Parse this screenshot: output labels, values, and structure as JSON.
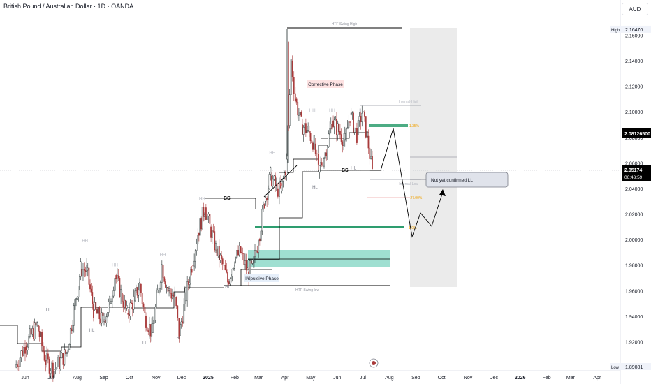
{
  "header": {
    "title": "British Pound / Australian Dollar · 1D · OANDA"
  },
  "price_scale": {
    "currency": "AUD"
  },
  "chart_data": {
    "type": "candlestick",
    "title": "British Pound / Australian Dollar · 1D · OANDA",
    "ylim": [
      1.89,
      2.175
    ],
    "y_ticks": [
      "2.16000",
      "2.14000",
      "2.12000",
      "2.10000",
      "2.08000",
      "2.06000",
      "2.04000",
      "2.02000",
      "2.00000",
      "1.98000",
      "1.96000",
      "1.94000",
      "1.92000",
      "1.90000"
    ],
    "x_ticks": [
      "Jun",
      "Jul",
      "Aug",
      "Sep",
      "Oct",
      "Nov",
      "Dec",
      "2025",
      "Feb",
      "Mar",
      "Apr",
      "May",
      "Jun",
      "Jul",
      "Aug",
      "Sep",
      "Oct",
      "Nov",
      "Dec",
      "2026",
      "Feb",
      "Mar",
      "Apr"
    ],
    "price_labels": {
      "high": {
        "label": "High",
        "value": "2.16470"
      },
      "level": {
        "value": "2.08126500"
      },
      "last": {
        "value": "2.05174",
        "countdown": "06:43:59"
      },
      "low": {
        "label": "Low",
        "value": "1.89081"
      }
    },
    "close_path": [
      [
        "2024-05-20",
        1.9
      ],
      [
        "2024-06-01",
        1.917
      ],
      [
        "2024-06-15",
        1.933
      ],
      [
        "2024-06-25",
        1.905
      ],
      [
        "2024-07-05",
        1.898
      ],
      [
        "2024-07-20",
        1.912
      ],
      [
        "2024-07-28",
        1.945
      ],
      [
        "2024-08-05",
        1.977
      ],
      [
        "2024-08-12",
        1.976
      ],
      [
        "2024-08-20",
        1.945
      ],
      [
        "2024-08-31",
        1.936
      ],
      [
        "2024-09-08",
        1.95
      ],
      [
        "2024-09-14",
        1.972
      ],
      [
        "2024-09-21",
        1.958
      ],
      [
        "2024-09-28",
        1.942
      ],
      [
        "2024-10-06",
        1.952
      ],
      [
        "2024-10-13",
        1.965
      ],
      [
        "2024-10-19",
        1.94
      ],
      [
        "2024-10-27",
        1.927
      ],
      [
        "2024-11-03",
        1.958
      ],
      [
        "2024-11-08",
        1.98
      ],
      [
        "2024-11-15",
        1.96
      ],
      [
        "2024-11-23",
        1.955
      ],
      [
        "2024-11-28",
        1.925
      ],
      [
        "2024-12-05",
        1.952
      ],
      [
        "2024-12-13",
        1.98
      ],
      [
        "2024-12-20",
        2.005
      ],
      [
        "2024-12-28",
        2.025
      ],
      [
        "2025-01-03",
        2.01
      ],
      [
        "2025-01-10",
        1.993
      ],
      [
        "2025-01-18",
        1.98
      ],
      [
        "2025-01-24",
        1.967
      ],
      [
        "2025-02-01",
        1.985
      ],
      [
        "2025-02-08",
        1.99
      ],
      [
        "2025-02-16",
        1.975
      ],
      [
        "2025-02-22",
        1.978
      ],
      [
        "2025-03-01",
        2.0
      ],
      [
        "2025-03-08",
        2.03
      ],
      [
        "2025-03-15",
        2.05
      ],
      [
        "2025-03-22",
        2.04
      ],
      [
        "2025-03-27",
        2.038
      ],
      [
        "2025-04-03",
        2.06
      ],
      [
        "2025-04-08",
        2.14
      ],
      [
        "2025-04-13",
        2.11
      ],
      [
        "2025-04-20",
        2.09
      ],
      [
        "2025-04-28",
        2.085
      ],
      [
        "2025-05-05",
        2.075
      ],
      [
        "2025-05-10",
        2.053
      ],
      [
        "2025-05-18",
        2.068
      ],
      [
        "2025-05-26",
        2.093
      ],
      [
        "2025-06-03",
        2.085
      ],
      [
        "2025-06-10",
        2.077
      ],
      [
        "2025-06-16",
        2.098
      ],
      [
        "2025-06-24",
        2.082
      ],
      [
        "2025-06-30",
        2.1
      ],
      [
        "2025-07-06",
        2.081
      ],
      [
        "2025-07-12",
        2.052
      ]
    ],
    "annotations": {
      "corrective_phase": "Corrective Phase",
      "impulsive_phase": "Impulsive Phase",
      "htf_swing_high": "HTF-Swing High",
      "htf_swing_low": "HTF-Swing low",
      "internal_high": "Internal-High",
      "internal_low": "Internal-Low",
      "callout": "Not yet confirmed LL",
      "fib_pos": "1.35%",
      "fib_neg": "-27.00%",
      "fib_mid": "-1.0%",
      "bos_labels": [
        "BS",
        "BS"
      ],
      "structure_labels": [
        {
          "text": "HH",
          "x": "2024-08-10",
          "y": 1.998
        },
        {
          "text": "HL",
          "x": "2024-08-18",
          "y": 1.928
        },
        {
          "text": "LL",
          "x": "2024-06-28",
          "y": 1.944
        },
        {
          "text": "HH",
          "x": "2024-09-14",
          "y": 1.979
        },
        {
          "text": "LL",
          "x": "2024-10-19",
          "y": 1.918
        },
        {
          "text": "HH",
          "x": "2024-11-09",
          "y": 1.987
        },
        {
          "text": "HL",
          "x": "2024-11-28",
          "y": 1.922
        },
        {
          "text": "HH",
          "x": "2024-12-25",
          "y": 2.031
        },
        {
          "text": "HL",
          "x": "2025-01-24",
          "y": 1.962
        },
        {
          "text": "HH",
          "x": "2025-03-17",
          "y": 2.067
        },
        {
          "text": "HL",
          "x": "2025-02-19",
          "y": 1.969
        },
        {
          "text": "HH",
          "x": "2025-05-03",
          "y": 2.1
        },
        {
          "text": "HH",
          "x": "2025-05-26",
          "y": 2.1
        },
        {
          "text": "HH",
          "x": "2025-06-28",
          "y": 2.1
        },
        {
          "text": "HL",
          "x": "2025-05-06",
          "y": 2.04
        },
        {
          "text": "HL",
          "x": "2025-06-20",
          "y": 2.055
        },
        {
          "text": "LH",
          "x": "2025-03-26",
          "y": 2.042
        }
      ]
    }
  }
}
